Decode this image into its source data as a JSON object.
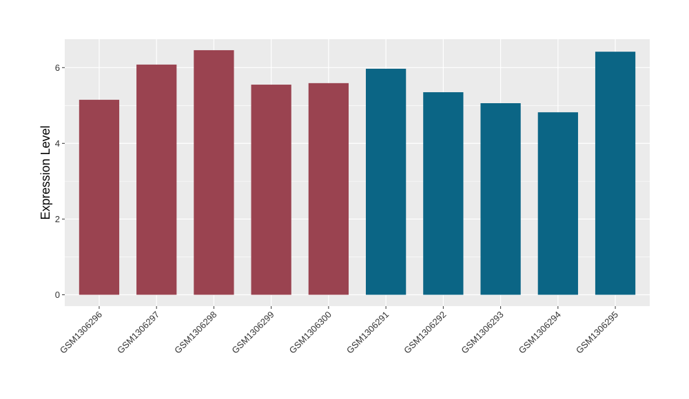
{
  "chart_data": {
    "type": "bar",
    "title": "",
    "xlabel": "",
    "ylabel": "Expression Level",
    "categories": [
      "GSM1306296",
      "GSM1306297",
      "GSM1306298",
      "GSM1306299",
      "GSM1306300",
      "GSM1306291",
      "GSM1306292",
      "GSM1306293",
      "GSM1306294",
      "GSM1306295"
    ],
    "values": [
      5.15,
      6.08,
      6.46,
      5.55,
      5.59,
      5.97,
      5.35,
      5.06,
      4.82,
      6.42
    ],
    "bar_colors": [
      "#9a4350",
      "#9a4350",
      "#9a4350",
      "#9a4350",
      "#9a4350",
      "#0b6585",
      "#0b6585",
      "#0b6585",
      "#0b6585",
      "#0b6585"
    ],
    "ylim": [
      -0.3,
      6.75
    ],
    "yticks": [
      0,
      2,
      4,
      6
    ],
    "grid": true,
    "panel_color": "#ebebeb",
    "grid_color": "#ffffff"
  }
}
